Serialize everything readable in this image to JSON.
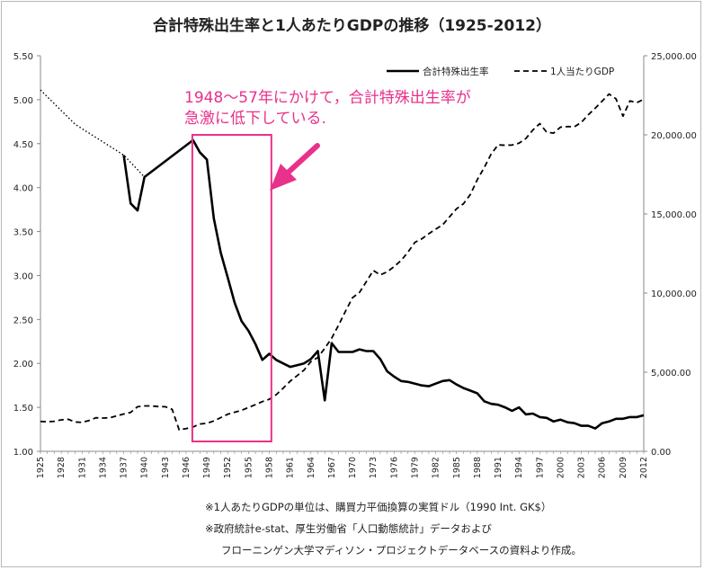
{
  "title": "合計特殊出生率と1人あたりGDPの推移（1925-2012）",
  "chart_data": {
    "type": "line",
    "title": "合計特殊出生率と1人あたりGDPの推移（1925-2012）",
    "x_ticks": [
      "1925",
      "1928",
      "1931",
      "1934",
      "1937",
      "1940",
      "1943",
      "1946",
      "1949",
      "1952",
      "1955",
      "1958",
      "1961",
      "1964",
      "1967",
      "1970",
      "1973",
      "1976",
      "1979",
      "1982",
      "1985",
      "1988",
      "1991",
      "1994",
      "1997",
      "2000",
      "2003",
      "2006",
      "2009",
      "2012"
    ],
    "y_left": {
      "ylim": [
        1.0,
        5.5
      ],
      "ticks": [
        "1.00",
        "1.50",
        "2.00",
        "2.50",
        "3.00",
        "3.50",
        "4.00",
        "4.50",
        "5.00",
        "5.50"
      ]
    },
    "y_right": {
      "ylim": [
        0,
        25000
      ],
      "ticks": [
        "0.00",
        "5,000.00",
        "10,000.00",
        "15,000.00",
        "20,000.00",
        "25,000.00"
      ]
    },
    "grid": false,
    "legend_position": "top-right",
    "series": [
      {
        "name": "合計特殊出生率",
        "axis": "left",
        "style": "solid",
        "x": [
          1937,
          1938,
          1939,
          1940,
          1947,
          1948,
          1949,
          1950,
          1951,
          1952,
          1953,
          1954,
          1955,
          1956,
          1957,
          1958,
          1959,
          1960,
          1961,
          1962,
          1963,
          1964,
          1965,
          1966,
          1967,
          1968,
          1969,
          1970,
          1971,
          1972,
          1973,
          1974,
          1975,
          1976,
          1977,
          1978,
          1979,
          1980,
          1981,
          1982,
          1983,
          1984,
          1985,
          1986,
          1987,
          1988,
          1989,
          1990,
          1991,
          1992,
          1993,
          1994,
          1995,
          1996,
          1997,
          1998,
          1999,
          2000,
          2001,
          2002,
          2003,
          2004,
          2005,
          2006,
          2007,
          2008,
          2009,
          2010,
          2011,
          2012
        ],
        "y": [
          4.37,
          3.82,
          3.74,
          4.12,
          4.54,
          4.4,
          4.32,
          3.65,
          3.26,
          2.98,
          2.69,
          2.48,
          2.37,
          2.22,
          2.04,
          2.11,
          2.04,
          2.0,
          1.96,
          1.98,
          2.0,
          2.05,
          2.14,
          1.58,
          2.23,
          2.13,
          2.13,
          2.13,
          2.16,
          2.14,
          2.14,
          2.05,
          1.91,
          1.85,
          1.8,
          1.79,
          1.77,
          1.75,
          1.74,
          1.77,
          1.8,
          1.81,
          1.76,
          1.72,
          1.69,
          1.66,
          1.57,
          1.54,
          1.53,
          1.5,
          1.46,
          1.5,
          1.42,
          1.43,
          1.39,
          1.38,
          1.34,
          1.36,
          1.33,
          1.32,
          1.29,
          1.29,
          1.26,
          1.32,
          1.34,
          1.37,
          1.37,
          1.39,
          1.39,
          1.41
        ]
      },
      {
        "name": "合計特殊出生率 (dotted)",
        "axis": "left",
        "style": "dotted",
        "x": [
          1925,
          1930,
          1937,
          1940,
          1947
        ],
        "y": [
          5.11,
          4.72,
          4.37,
          4.12,
          4.54
        ]
      },
      {
        "name": "1人当たりGDP",
        "axis": "right",
        "style": "dashed",
        "x": [
          1925,
          1926,
          1927,
          1928,
          1929,
          1930,
          1931,
          1932,
          1933,
          1934,
          1935,
          1936,
          1937,
          1938,
          1939,
          1940,
          1941,
          1942,
          1943,
          1944,
          1945,
          1946,
          1947,
          1948,
          1949,
          1950,
          1951,
          1952,
          1953,
          1954,
          1955,
          1956,
          1957,
          1958,
          1959,
          1960,
          1961,
          1962,
          1963,
          1964,
          1965,
          1966,
          1967,
          1968,
          1969,
          1970,
          1971,
          1972,
          1973,
          1974,
          1975,
          1976,
          1977,
          1978,
          1979,
          1980,
          1981,
          1982,
          1983,
          1984,
          1985,
          1986,
          1987,
          1988,
          1989,
          1990,
          1991,
          1992,
          1993,
          1994,
          1995,
          1996,
          1997,
          1998,
          1999,
          2000,
          2001,
          2002,
          2003,
          2004,
          2005,
          2006,
          2007,
          2008,
          2009,
          2010,
          2011,
          2012
        ],
        "y": [
          1885,
          1870,
          1900,
          1990,
          2020,
          1850,
          1830,
          1950,
          2120,
          2100,
          2120,
          2240,
          2360,
          2460,
          2820,
          2870,
          2870,
          2830,
          2820,
          2650,
          1350,
          1440,
          1540,
          1730,
          1770,
          1920,
          2130,
          2340,
          2470,
          2590,
          2770,
          2950,
          3140,
          3290,
          3580,
          3990,
          4430,
          4780,
          5130,
          5670,
          5930,
          6510,
          7150,
          7980,
          8870,
          9710,
          10040,
          10730,
          11430,
          11150,
          11340,
          11670,
          12060,
          12590,
          13210,
          13430,
          13750,
          14040,
          14310,
          14820,
          15330,
          15650,
          16240,
          17170,
          17940,
          18790,
          19370,
          19340,
          19360,
          19470,
          19770,
          20300,
          20710,
          20170,
          20110,
          20490,
          20520,
          20510,
          20790,
          21270,
          21680,
          22130,
          22580,
          22280,
          21180,
          22150,
          22040,
          22250
        ]
      }
    ],
    "annotations": [
      "1948〜57年にかけて，合計特殊出生率が",
      "急激に低下している."
    ]
  },
  "legend": {
    "tfr_label": "合計特殊出生率",
    "gdp_label": "1人当たりGDP"
  },
  "notes": [
    "※1人あたりGDPの単位は、購買力平価換算の実質ドル（1990 Int. GK$）",
    "※政府統計e-stat、厚生労働省「人口動態統計」データおよび",
    "フローニンゲン大学マディソン・プロジェクトデータベースの資料より作成。"
  ],
  "colors": {
    "highlight": "#e8318a",
    "line": "#000000",
    "axis": "#888888"
  }
}
